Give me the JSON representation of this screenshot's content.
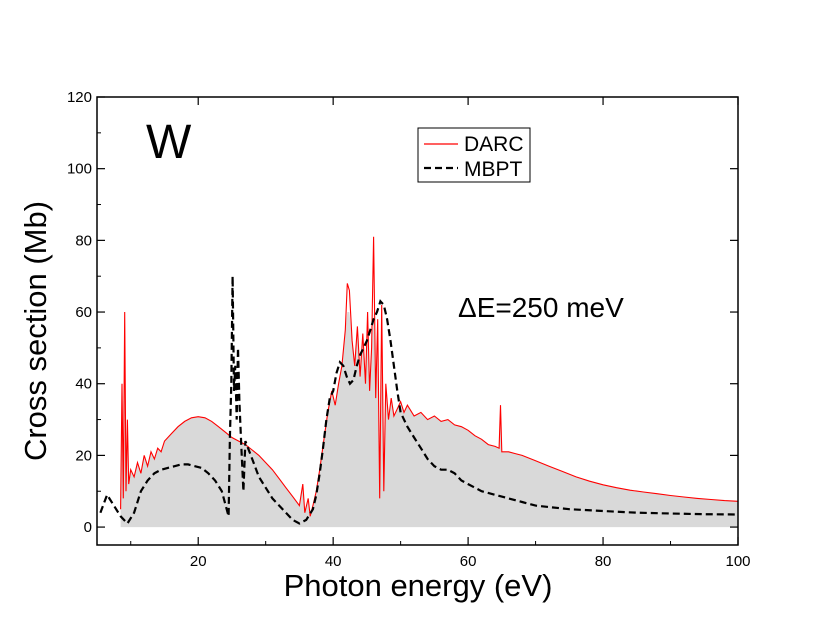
{
  "chart_data": {
    "type": "line",
    "element_label": "W",
    "annotation": "ΔE=250 meV",
    "xlabel": "Photon energy (eV)",
    "ylabel": "Cross section (Mb)",
    "xlim": [
      5,
      100
    ],
    "ylim": [
      -5,
      120
    ],
    "xticks": [
      20,
      40,
      60,
      80,
      100
    ],
    "yticks": [
      0,
      20,
      40,
      60,
      80,
      100,
      120
    ],
    "legend": {
      "position": "top-center",
      "entries": [
        "DARC",
        "MBPT"
      ]
    },
    "colors": {
      "darc": "#ff0000",
      "mbpt": "#000000",
      "fill": "#d9d9d9"
    },
    "series": [
      {
        "name": "DARC",
        "style": "solid",
        "points": [
          [
            8.5,
            5
          ],
          [
            8.7,
            40
          ],
          [
            8.9,
            8
          ],
          [
            9.1,
            60
          ],
          [
            9.3,
            10
          ],
          [
            9.5,
            30
          ],
          [
            9.7,
            12
          ],
          [
            10.0,
            16
          ],
          [
            10.5,
            14
          ],
          [
            11,
            18
          ],
          [
            11.5,
            15
          ],
          [
            12,
            20
          ],
          [
            12.5,
            17
          ],
          [
            13,
            21
          ],
          [
            13.5,
            19
          ],
          [
            14,
            22
          ],
          [
            14.5,
            21
          ],
          [
            15,
            24
          ],
          [
            16,
            26
          ],
          [
            17,
            28
          ],
          [
            18,
            29.5
          ],
          [
            19,
            30.5
          ],
          [
            20,
            30.8
          ],
          [
            21,
            30.5
          ],
          [
            22,
            29.5
          ],
          [
            23,
            28
          ],
          [
            24,
            26.5
          ],
          [
            25,
            25
          ],
          [
            26,
            24
          ],
          [
            27,
            23
          ],
          [
            28,
            21.5
          ],
          [
            29,
            20
          ],
          [
            30,
            18
          ],
          [
            31,
            16
          ],
          [
            32,
            13.5
          ],
          [
            33,
            11
          ],
          [
            34,
            8.5
          ],
          [
            35,
            6
          ],
          [
            35.5,
            12
          ],
          [
            35.8,
            4
          ],
          [
            36.3,
            8
          ],
          [
            36.6,
            3
          ],
          [
            37,
            6
          ],
          [
            37.5,
            10
          ],
          [
            38,
            16
          ],
          [
            38.6,
            24
          ],
          [
            39.2,
            32
          ],
          [
            39.8,
            38
          ],
          [
            40.3,
            34
          ],
          [
            40.8,
            40
          ],
          [
            41.3,
            45
          ],
          [
            41.8,
            55
          ],
          [
            42.1,
            68
          ],
          [
            42.4,
            66
          ],
          [
            42.8,
            52
          ],
          [
            43.2,
            45
          ],
          [
            43.6,
            56
          ],
          [
            44,
            42
          ],
          [
            44.4,
            54
          ],
          [
            44.8,
            40
          ],
          [
            45.1,
            60
          ],
          [
            45.4,
            38
          ],
          [
            45.7,
            50
          ],
          [
            46,
            81
          ],
          [
            46.3,
            36
          ],
          [
            46.6,
            58
          ],
          [
            46.9,
            8
          ],
          [
            47.2,
            62
          ],
          [
            47.5,
            10
          ],
          [
            47.8,
            40
          ],
          [
            48.2,
            30
          ],
          [
            48.6,
            36
          ],
          [
            49,
            31
          ],
          [
            49.5,
            33
          ],
          [
            50,
            35
          ],
          [
            50.5,
            32
          ],
          [
            51,
            34
          ],
          [
            52,
            31
          ],
          [
            53,
            32
          ],
          [
            54,
            30
          ],
          [
            55,
            31
          ],
          [
            56,
            29.5
          ],
          [
            57,
            30
          ],
          [
            58,
            28.5
          ],
          [
            59,
            28
          ],
          [
            60,
            27
          ],
          [
            61,
            25.5
          ],
          [
            62,
            24.5
          ],
          [
            63,
            23
          ],
          [
            64,
            22.5
          ],
          [
            64.6,
            22
          ],
          [
            64.8,
            34
          ],
          [
            65,
            21
          ],
          [
            66,
            21
          ],
          [
            67,
            20.5
          ],
          [
            68,
            20
          ],
          [
            70,
            18.5
          ],
          [
            72,
            17
          ],
          [
            74,
            15.5
          ],
          [
            76,
            14
          ],
          [
            78,
            12.8
          ],
          [
            80,
            11.8
          ],
          [
            82,
            11
          ],
          [
            84,
            10.3
          ],
          [
            86,
            9.8
          ],
          [
            88,
            9.3
          ],
          [
            90,
            8.8
          ],
          [
            92,
            8.4
          ],
          [
            94,
            8.0
          ],
          [
            96,
            7.7
          ],
          [
            98,
            7.4
          ],
          [
            100,
            7.2
          ]
        ]
      },
      {
        "name": "MBPT",
        "style": "dashed",
        "points": [
          [
            5.5,
            4
          ],
          [
            6.5,
            9
          ],
          [
            7.5,
            6
          ],
          [
            8.5,
            3
          ],
          [
            9.5,
            1
          ],
          [
            10.5,
            4
          ],
          [
            11.5,
            10
          ],
          [
            12.5,
            13
          ],
          [
            13.5,
            15
          ],
          [
            14.5,
            16
          ],
          [
            15.5,
            16.5
          ],
          [
            16.5,
            17
          ],
          [
            17.5,
            17.5
          ],
          [
            18.5,
            17.5
          ],
          [
            19.5,
            17
          ],
          [
            20.5,
            16.5
          ],
          [
            21.5,
            15
          ],
          [
            22.5,
            13
          ],
          [
            23.5,
            10
          ],
          [
            24.5,
            3
          ],
          [
            24.7,
            25
          ],
          [
            24.9,
            40
          ],
          [
            25.1,
            70
          ],
          [
            25.3,
            38
          ],
          [
            25.5,
            45
          ],
          [
            25.7,
            30
          ],
          [
            25.9,
            50
          ],
          [
            26.1,
            35
          ],
          [
            26.4,
            22
          ],
          [
            26.7,
            10
          ],
          [
            27,
            24
          ],
          [
            28,
            19
          ],
          [
            29,
            14
          ],
          [
            30,
            11
          ],
          [
            31,
            8
          ],
          [
            32,
            6
          ],
          [
            33,
            4
          ],
          [
            34,
            2
          ],
          [
            35,
            1
          ],
          [
            36,
            2
          ],
          [
            37,
            5
          ],
          [
            37.5,
            9
          ],
          [
            38,
            15
          ],
          [
            38.5,
            22
          ],
          [
            39,
            30
          ],
          [
            39.5,
            36
          ],
          [
            40,
            38
          ],
          [
            40.5,
            43
          ],
          [
            41,
            46
          ],
          [
            41.5,
            45
          ],
          [
            42,
            42
          ],
          [
            42.5,
            40
          ],
          [
            43,
            41
          ],
          [
            43.5,
            45
          ],
          [
            44,
            48
          ],
          [
            44.5,
            50
          ],
          [
            45,
            52
          ],
          [
            45.5,
            55
          ],
          [
            46,
            58
          ],
          [
            46.5,
            60
          ],
          [
            47,
            63
          ],
          [
            47.5,
            62
          ],
          [
            48,
            58
          ],
          [
            48.5,
            52
          ],
          [
            49,
            45
          ],
          [
            49.5,
            38
          ],
          [
            50,
            32
          ],
          [
            51,
            28
          ],
          [
            52,
            25
          ],
          [
            53,
            22
          ],
          [
            54,
            19
          ],
          [
            55,
            17
          ],
          [
            56,
            16
          ],
          [
            57,
            16
          ],
          [
            58,
            15
          ],
          [
            59,
            13
          ],
          [
            60,
            12
          ],
          [
            62,
            10
          ],
          [
            64,
            9
          ],
          [
            66,
            8
          ],
          [
            68,
            7
          ],
          [
            70,
            6
          ],
          [
            75,
            5
          ],
          [
            80,
            4.5
          ],
          [
            85,
            4
          ],
          [
            90,
            3.8
          ],
          [
            95,
            3.6
          ],
          [
            100,
            3.5
          ]
        ]
      }
    ]
  }
}
